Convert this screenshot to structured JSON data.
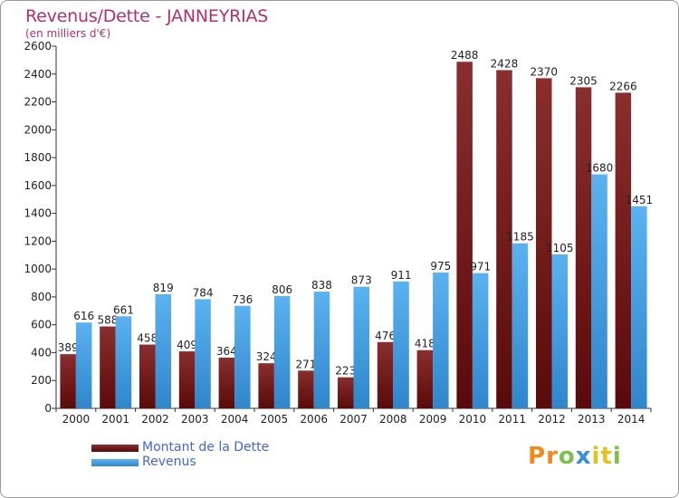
{
  "header": {
    "title": "Revenus/Dette - JANNEYRIAS",
    "subtitle": "(en milliers d'€)"
  },
  "colors": {
    "debt": "#6b1a1a",
    "revenue": "#4aa3e6",
    "title": "#b2306d",
    "legend_text": "#4466dd"
  },
  "legend": {
    "items": [
      {
        "label": "Montant de la Dette"
      },
      {
        "label": "Revenus"
      }
    ]
  },
  "logo": {
    "letters": [
      "P",
      "r",
      "o",
      "x",
      "i",
      "t",
      "i"
    ],
    "colors": [
      "#f08a1c",
      "#f08a1c",
      "#7cc04a",
      "#3a8fd8",
      "#e2c21d",
      "#e2c21d",
      "#7cc04a"
    ]
  },
  "chart_data": {
    "type": "bar",
    "title": "Revenus/Dette - JANNEYRIAS",
    "subtitle": "(en milliers d'€)",
    "categories": [
      "2000",
      "2001",
      "2002",
      "2003",
      "2004",
      "2005",
      "2006",
      "2007",
      "2008",
      "2009",
      "2010",
      "2011",
      "2012",
      "2013",
      "2014"
    ],
    "series": [
      {
        "name": "Montant de la Dette",
        "values": [
          389,
          588,
          458,
          409,
          364,
          324,
          271,
          223,
          476,
          418,
          2488,
          2428,
          2370,
          2305,
          2266
        ]
      },
      {
        "name": "Revenus",
        "values": [
          616,
          661,
          819,
          784,
          736,
          806,
          838,
          873,
          911,
          975,
          971,
          1185,
          1105,
          1680,
          1451
        ]
      }
    ],
    "ylim": [
      0,
      2600
    ],
    "yticks": [
      0,
      200,
      400,
      600,
      800,
      1000,
      1200,
      1400,
      1600,
      1800,
      2000,
      2200,
      2400,
      2600
    ],
    "grid": false,
    "legend_position": "bottom-left"
  }
}
